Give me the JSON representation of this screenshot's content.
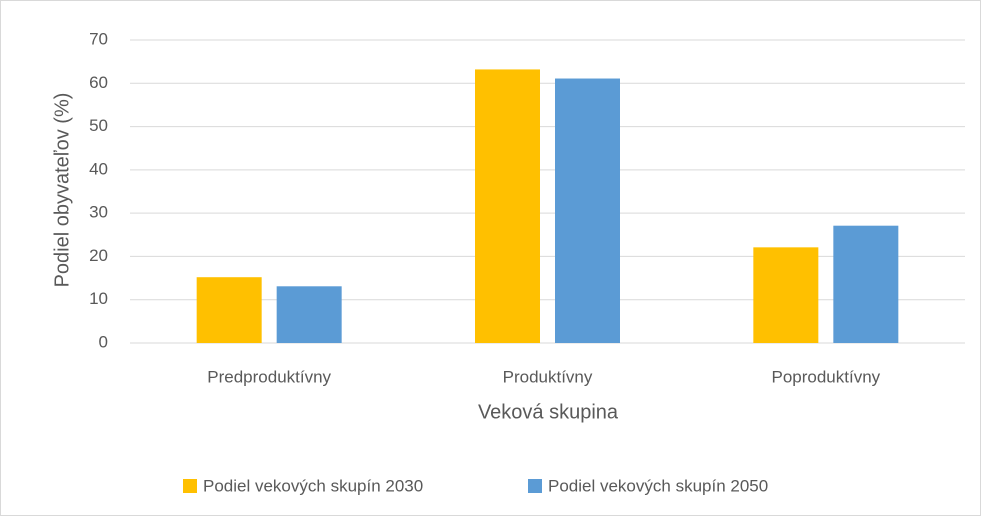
{
  "chart_data": {
    "type": "bar",
    "x_label": "Veková skupina",
    "y_label": "Podiel obyvateľov (%)",
    "categories": [
      "Predproduktívny",
      "Produktívny",
      "Poproduktívny"
    ],
    "series": [
      {
        "name": "Podiel vekových skupín 2030",
        "color": "#ffc000",
        "values": [
          15.2,
          63.2,
          22.1
        ]
      },
      {
        "name": "Podiel vekových skupín 2050",
        "color": "#5b9bd5",
        "values": [
          13.1,
          61.1,
          27.1
        ]
      }
    ],
    "ylim": [
      0,
      70
    ],
    "yticks": [
      0,
      10,
      20,
      30,
      40,
      50,
      60,
      70
    ],
    "grid": true,
    "legend": "bottom"
  }
}
